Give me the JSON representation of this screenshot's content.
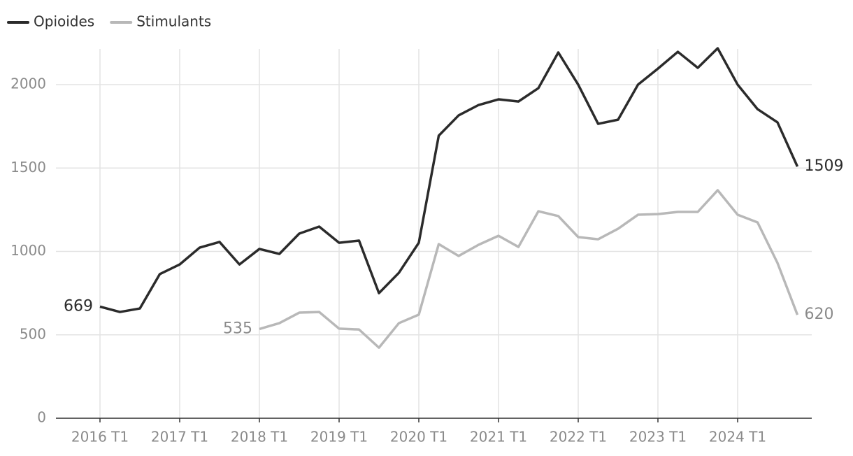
{
  "chart_data": {
    "type": "line",
    "categories": [
      "2016 T1",
      null,
      null,
      null,
      "2017 T1",
      null,
      null,
      null,
      "2018 T1",
      null,
      null,
      null,
      "2019 T1",
      null,
      null,
      null,
      "2020 T1",
      null,
      null,
      null,
      "2021 T1",
      null,
      null,
      null,
      "2022 T1",
      null,
      null,
      null,
      "2023 T1",
      null,
      null,
      null,
      "2024 T1",
      null,
      null,
      null
    ],
    "series": [
      {
        "name": "Opioides",
        "color": "#2b2b2b",
        "values": [
          669,
          637,
          658,
          864,
          922,
          1023,
          1057,
          922,
          1015,
          985,
          1107,
          1149,
          1052,
          1065,
          750,
          872,
          1052,
          1694,
          1816,
          1878,
          1912,
          1899,
          1979,
          2193,
          2000,
          1765,
          1790,
          2000,
          2096,
          2197,
          2101,
          2218,
          2000,
          1853,
          1774,
          1509
        ]
      },
      {
        "name": "Stimulants",
        "color": "#b8b8b8",
        "values": [
          null,
          null,
          null,
          null,
          null,
          null,
          null,
          null,
          535,
          570,
          633,
          637,
          537,
          532,
          423,
          570,
          621,
          1044,
          973,
          1040,
          1094,
          1027,
          1241,
          1212,
          1086,
          1073,
          1136,
          1220,
          1224,
          1237,
          1237,
          1367,
          1220,
          1174,
          931,
          620
        ]
      }
    ],
    "ylim": [
      0,
      2214
    ],
    "yticks": [
      0,
      500,
      1000,
      1500,
      2000
    ],
    "grid": true,
    "legend": "top-left"
  }
}
